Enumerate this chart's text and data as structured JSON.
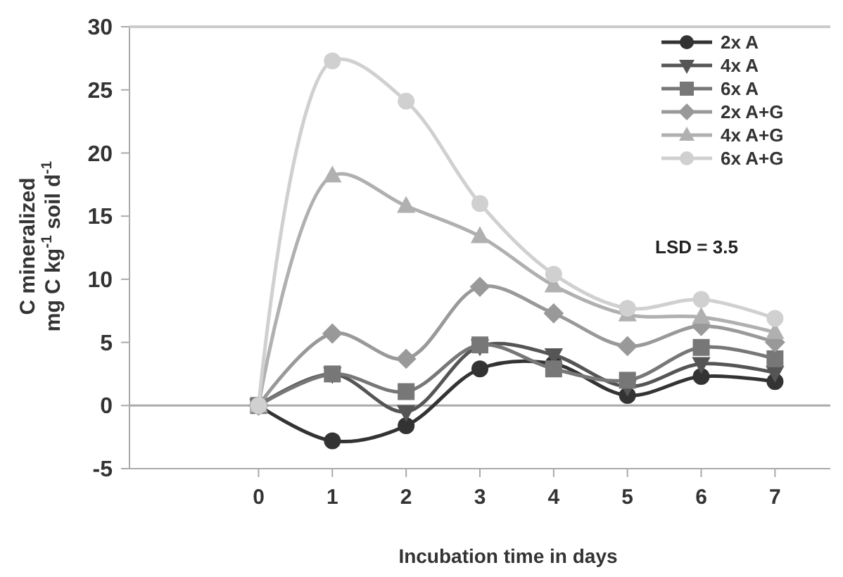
{
  "chart_data": {
    "type": "line",
    "xlabel": "Incubation time in days",
    "ylabel": "C mineralized\nmg C kg$^{-1}$ soil d$^{-1}$",
    "x": [
      0,
      1,
      2,
      3,
      4,
      5,
      6,
      7
    ],
    "xlim": [
      -1.75,
      7.75
    ],
    "xticks": [
      0,
      1,
      2,
      3,
      4,
      5,
      6,
      7
    ],
    "ylim": [
      -5,
      30
    ],
    "yticks": [
      -5,
      0,
      5,
      10,
      15,
      20,
      25,
      30
    ],
    "grid": false,
    "legend": "top right",
    "line_style": "solid",
    "ref_lines": [
      {
        "axis": "y",
        "value": 0,
        "color": "#aaaaaa"
      }
    ],
    "annotations": [
      "LSD = 3.5"
    ],
    "series": [
      {
        "name": "2x A",
        "color": "#333333",
        "marker": "circle",
        "values": [
          0,
          -2.8,
          -1.6,
          2.9,
          3.3,
          0.8,
          2.3,
          1.9
        ]
      },
      {
        "name": "4x A",
        "color": "#555555",
        "marker": "triangle-down",
        "values": [
          0,
          2.5,
          -0.5,
          4.7,
          4.0,
          1.5,
          3.3,
          2.6
        ]
      },
      {
        "name": "6x A",
        "color": "#777777",
        "marker": "square",
        "values": [
          0,
          2.5,
          1.1,
          4.8,
          2.9,
          2.0,
          4.6,
          3.7
        ]
      },
      {
        "name": "2x A+G",
        "color": "#999999",
        "marker": "diamond",
        "values": [
          0,
          5.7,
          3.7,
          9.4,
          7.3,
          4.7,
          6.3,
          5.0
        ]
      },
      {
        "name": "4x A+G",
        "color": "#b0b0b0",
        "marker": "triangle",
        "values": [
          0,
          18.2,
          15.8,
          13.4,
          9.5,
          7.2,
          7.0,
          5.8
        ]
      },
      {
        "name": "6x A+G",
        "color": "#d0d0d0",
        "marker": "circle",
        "values": [
          0,
          27.3,
          24.1,
          16.0,
          10.4,
          7.7,
          8.4,
          6.9
        ]
      }
    ]
  }
}
